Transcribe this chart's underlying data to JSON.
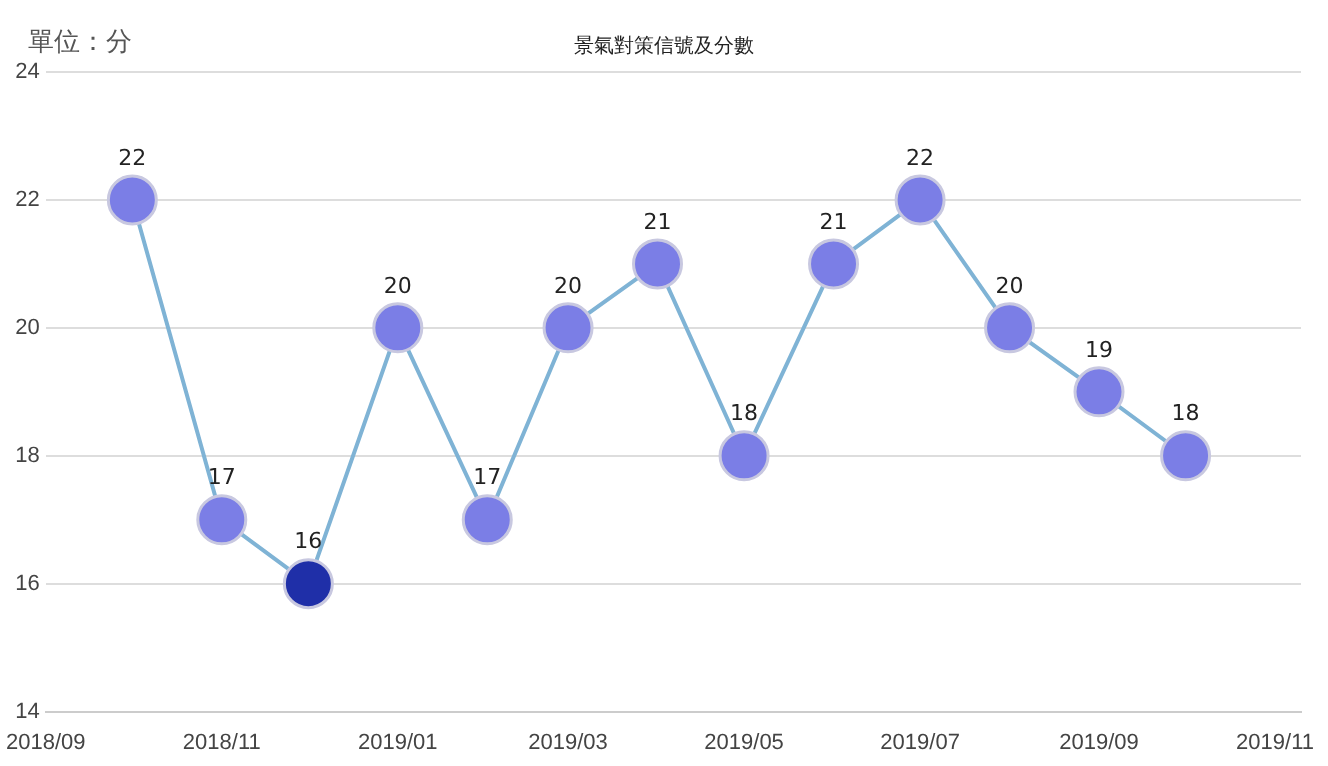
{
  "chart_data": {
    "type": "line",
    "title": "景氣對策信號及分數",
    "ylabel": "單位：分",
    "x": [
      "2018-10",
      "2018-11",
      "2018-12",
      "2019-01",
      "2019-02",
      "2019-03",
      "2019-04",
      "2019-05",
      "2019-06",
      "2019-07",
      "2019-08",
      "2019-09",
      "2019-10"
    ],
    "series": [
      {
        "color": "#7fb3d5",
        "values": [
          22,
          17,
          16,
          20,
          17,
          20,
          21,
          18,
          21,
          22,
          20,
          19,
          18
        ],
        "colors": [
          "#7b7ee6",
          "#7b7ee6",
          "#1f2fa8",
          "#7b7ee6",
          "#7b7ee6",
          "#7b7ee6",
          "#7b7ee6",
          "#7b7ee6",
          "#7b7ee6",
          "#7b7ee6",
          "#7b7ee6",
          "#7b7ee6",
          "#7b7ee6"
        ]
      }
    ],
    "xlim": [
      "2018-09",
      "2019-11-10"
    ],
    "xticks": [
      {
        "value": "2018-09",
        "label": "2018/09"
      },
      {
        "value": "2018-11",
        "label": "2018/11"
      },
      {
        "value": "2019-01",
        "label": "2019/01"
      },
      {
        "value": "2019-03",
        "label": "2019/03"
      },
      {
        "value": "2019-05",
        "label": "2019/05"
      },
      {
        "value": "2019-07",
        "label": "2019/07"
      },
      {
        "value": "2019-09",
        "label": "2019/09"
      },
      {
        "value": "2019-11",
        "label": "2019/11"
      }
    ],
    "ylim": [
      14,
      24
    ],
    "yticks": [
      14,
      16,
      18,
      20,
      22,
      24
    ],
    "grid": "y",
    "marker": "circle",
    "line_style": "solid",
    "data_labels": true,
    "legend": false
  }
}
